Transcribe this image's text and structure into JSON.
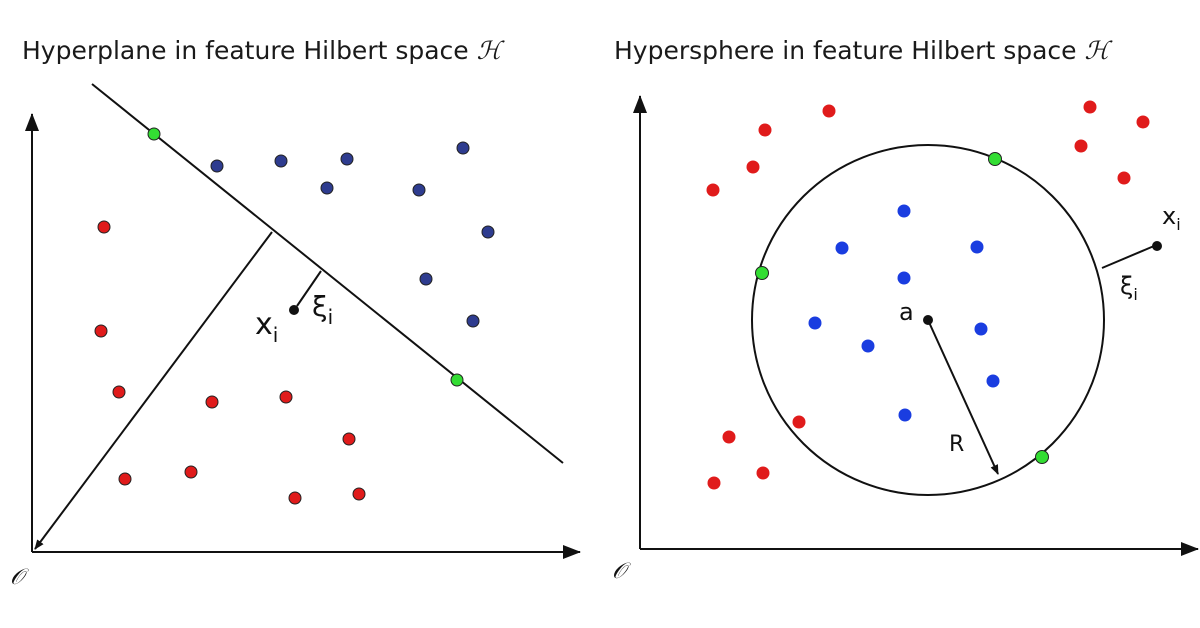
{
  "left_panel": {
    "title": "Hyperplane in feature Hilbert space",
    "space_symbol": "ℋ",
    "origin": "𝒪",
    "point_label": "x",
    "point_subscript": "i",
    "slack_label": "ξ",
    "slack_subscript": "i"
  },
  "right_panel": {
    "title": "Hypersphere in feature Hilbert space",
    "space_symbol": "ℋ",
    "origin": "𝒪",
    "center_label": "a",
    "radius_label": "R",
    "point_label": "x",
    "point_subscript": "i",
    "slack_label": "ξ",
    "slack_subscript": "i"
  },
  "colors": {
    "outlier_red": "#e01b1b",
    "hyperplane_class_navy": "#2e3c8f",
    "sphere_class_blue": "#1a3de0",
    "support_vector_green": "#33dd33",
    "ink": "#111111"
  }
}
